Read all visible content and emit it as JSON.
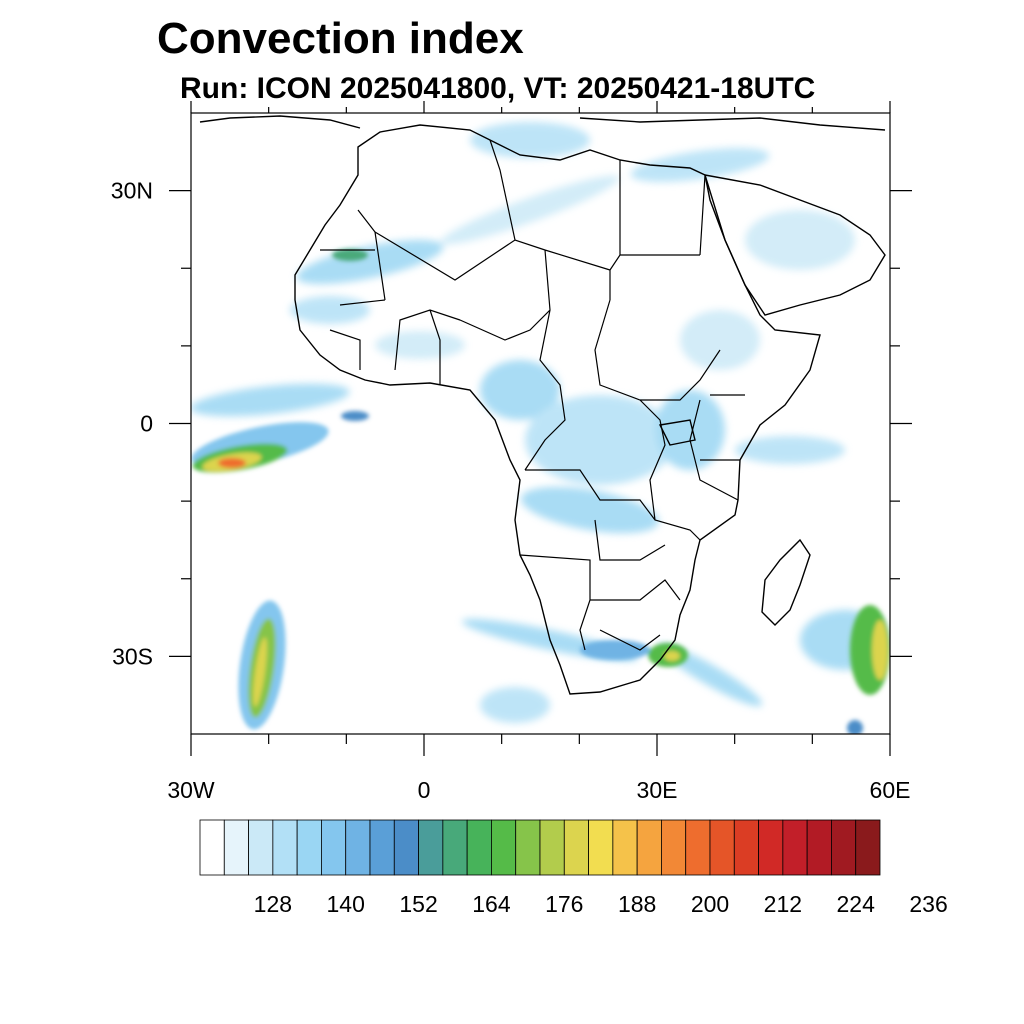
{
  "title": "Convection index",
  "subtitle": "Run: ICON 2025041800,  VT: 20250421-18UTC",
  "map": {
    "region": "Africa",
    "lon_range": [
      -30,
      60
    ],
    "lat_range": [
      -40,
      40
    ],
    "lon_ticks": [
      {
        "value": -30,
        "label": "30W"
      },
      {
        "value": 0,
        "label": "0"
      },
      {
        "value": 30,
        "label": "30E"
      },
      {
        "value": 60,
        "label": "60E"
      }
    ],
    "lat_ticks": [
      {
        "value": 30,
        "label": "30N"
      },
      {
        "value": 0,
        "label": "0"
      },
      {
        "value": -30,
        "label": "30S"
      }
    ]
  },
  "colorbar": {
    "colors": [
      "#ffffff",
      "#e6f4fb",
      "#cbe9f7",
      "#b2e0f6",
      "#9ad6f3",
      "#84c6ee",
      "#6fb3e4",
      "#5a9fd7",
      "#4b8dc8",
      "#4a9d9a",
      "#48a97a",
      "#47b35a",
      "#55bb48",
      "#86c44a",
      "#b2cc4c",
      "#dcd44e",
      "#f2dd50",
      "#f5c24a",
      "#f5a43f",
      "#f28836",
      "#ee6d2e",
      "#e55528",
      "#db3d24",
      "#d12926",
      "#c21f29",
      "#b21b25",
      "#a01a21",
      "#8a1a1c"
    ],
    "tick_labels": [
      "128",
      "140",
      "152",
      "164",
      "176",
      "188",
      "200",
      "212",
      "224",
      "236"
    ]
  }
}
